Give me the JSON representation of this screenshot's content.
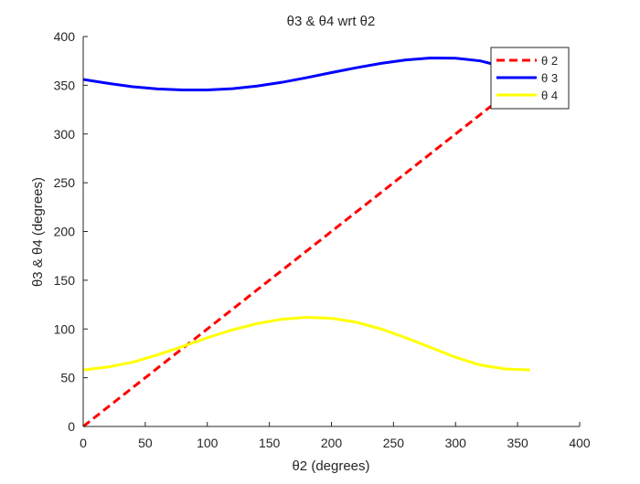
{
  "chart_data": {
    "type": "line",
    "title": "θ3 & θ4 wrt θ2",
    "xlabel": "θ2 (degrees)",
    "ylabel": "θ3 & θ4 (degrees)",
    "xlim": [
      0,
      400
    ],
    "ylim": [
      0,
      400
    ],
    "xticks": [
      "0",
      "50",
      "100",
      "150",
      "200",
      "250",
      "300",
      "350",
      "400"
    ],
    "yticks": [
      "0",
      "50",
      "100",
      "150",
      "200",
      "250",
      "300",
      "350",
      "400"
    ],
    "grid": false,
    "legend_position": "top-right",
    "series": [
      {
        "name": "θ 2",
        "color": "#ff0000",
        "style": "dashed",
        "x": [
          0,
          360
        ],
        "y": [
          0,
          360
        ]
      },
      {
        "name": "θ 3",
        "color": "#0000ff",
        "style": "solid",
        "x": [
          0,
          20,
          40,
          60,
          80,
          100,
          120,
          140,
          160,
          180,
          200,
          220,
          240,
          260,
          280,
          300,
          320,
          340,
          360
        ],
        "y": [
          356,
          352,
          348.5,
          346.3,
          345.2,
          345.2,
          346.5,
          349.2,
          353,
          357.8,
          363,
          368,
          372.5,
          376,
          378,
          377.8,
          375,
          368.5,
          358
        ]
      },
      {
        "name": "θ 4",
        "color": "#ffff00",
        "style": "solid",
        "x": [
          0,
          20,
          40,
          60,
          80,
          100,
          120,
          140,
          160,
          180,
          200,
          220,
          240,
          260,
          280,
          300,
          320,
          340,
          360
        ],
        "y": [
          58,
          61,
          66,
          73.5,
          82,
          91,
          99,
          105.5,
          110,
          112,
          111,
          107,
          100,
          91,
          81,
          71,
          63,
          59,
          58
        ]
      }
    ]
  }
}
